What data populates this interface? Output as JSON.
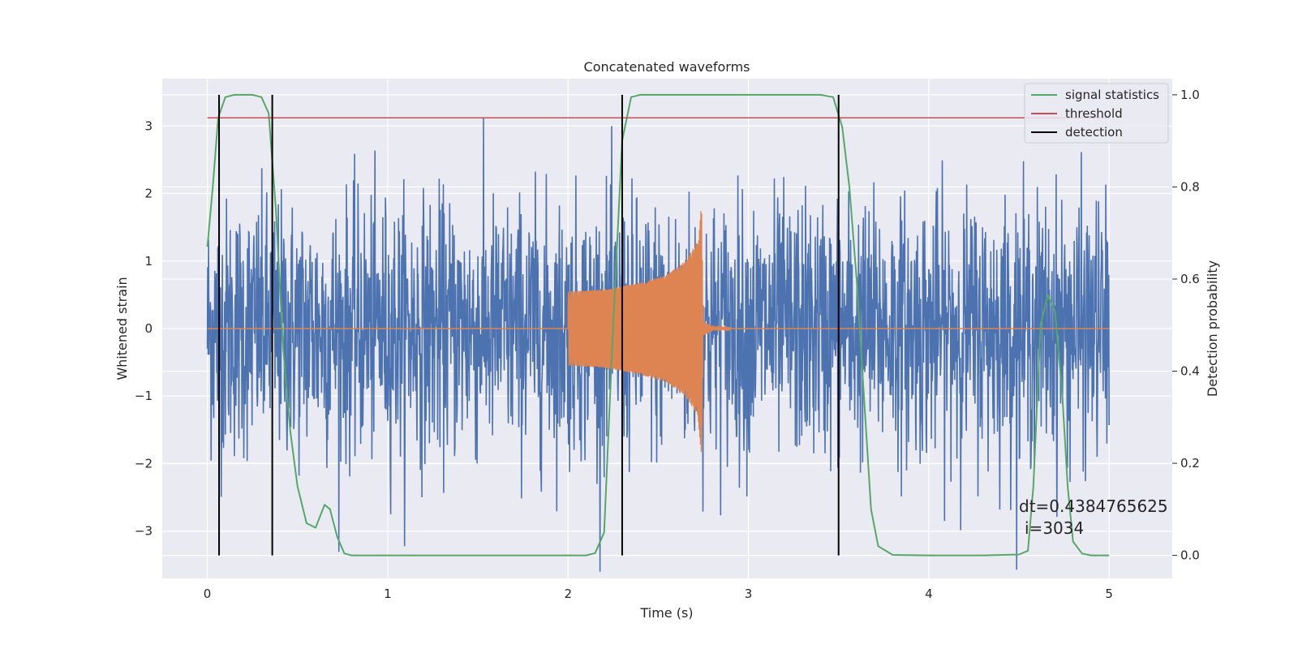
{
  "chart_data": {
    "type": "line",
    "title": "Concatenated waveforms",
    "xlabel": "Time (s)",
    "ylabel_left": "Whitened strain",
    "ylabel_right": "Detection probability",
    "xlim": [
      -0.25,
      5.35
    ],
    "ylim_left": [
      -3.7,
      3.7
    ],
    "ylim_right": [
      -0.05,
      1.035
    ],
    "xticks": [
      0,
      1,
      2,
      3,
      4,
      5
    ],
    "xtick_labels": [
      "0",
      "1",
      "2",
      "3",
      "4",
      "5"
    ],
    "yticks_left": [
      -3,
      -2,
      -1,
      0,
      1,
      2,
      3
    ],
    "ytick_labels_left": [
      "−3",
      "−2",
      "−1",
      "0",
      "1",
      "2",
      "3"
    ],
    "yticks_right": [
      0.0,
      0.2,
      0.4,
      0.6,
      0.8,
      1.0
    ],
    "ytick_labels_right": [
      "0.0",
      "0.2",
      "0.4",
      "0.6",
      "0.8",
      "1.0"
    ],
    "grid": true,
    "legend_position": "top-right",
    "series": [
      {
        "name": "",
        "kind": "noise",
        "axis": "left",
        "color": "#4c72b0",
        "x_range": [
          0,
          5
        ],
        "typical_envelope": 1.9,
        "max_abs": 3.6
      },
      {
        "name": "",
        "kind": "chirp",
        "axis": "left",
        "color": "#dd8452",
        "baseline": 0,
        "x": [
          2.0,
          2.2,
          2.4,
          2.55,
          2.65,
          2.72,
          2.74,
          2.75,
          2.8,
          3.0
        ],
        "amplitude": [
          0.55,
          0.58,
          0.68,
          0.8,
          1.0,
          1.3,
          1.9,
          0.1,
          0.03,
          0.0
        ]
      },
      {
        "name": "signal statistics",
        "axis": "right",
        "color": "#55a868",
        "x": [
          0.0,
          0.03,
          0.06,
          0.1,
          0.15,
          0.2,
          0.25,
          0.3,
          0.34,
          0.38,
          0.42,
          0.46,
          0.5,
          0.55,
          0.6,
          0.65,
          0.68,
          0.72,
          0.76,
          0.8,
          1.0,
          1.5,
          2.0,
          2.1,
          2.15,
          2.2,
          2.25,
          2.3,
          2.35,
          2.4,
          2.6,
          3.0,
          3.4,
          3.47,
          3.52,
          3.56,
          3.6,
          3.64,
          3.68,
          3.72,
          3.8,
          4.0,
          4.3,
          4.5,
          4.55,
          4.58,
          4.62,
          4.66,
          4.7,
          4.74,
          4.77,
          4.8,
          4.85,
          4.9,
          5.0
        ],
        "y": [
          0.67,
          0.8,
          0.95,
          0.995,
          1.0,
          1.0,
          1.0,
          0.995,
          0.96,
          0.75,
          0.45,
          0.27,
          0.15,
          0.07,
          0.06,
          0.11,
          0.1,
          0.04,
          0.004,
          0.0,
          0.0,
          0.0,
          0.0,
          0.0,
          0.005,
          0.05,
          0.5,
          0.9,
          0.995,
          1.0,
          1.0,
          1.0,
          1.0,
          0.995,
          0.93,
          0.8,
          0.6,
          0.35,
          0.1,
          0.02,
          0.001,
          0.0,
          0.0,
          0.002,
          0.01,
          0.15,
          0.5,
          0.565,
          0.53,
          0.35,
          0.15,
          0.03,
          0.004,
          0.0,
          0.0
        ]
      },
      {
        "name": "threshold",
        "axis": "right",
        "color": "#c44e52",
        "x": [
          0,
          5
        ],
        "y": [
          0.95,
          0.95
        ]
      },
      {
        "name": "detection",
        "kind": "vlines",
        "axis": "right",
        "color": "#000000",
        "x": [
          0.065,
          0.36,
          2.3,
          3.5
        ],
        "ymin": 0.0,
        "ymax": 1.0
      }
    ],
    "annotation": {
      "line1": "dt=0.4384765625",
      "line2": "i=3034"
    },
    "colors": {
      "background": "#eaeaf2",
      "grid": "#ffffff",
      "text": "#262626"
    }
  }
}
